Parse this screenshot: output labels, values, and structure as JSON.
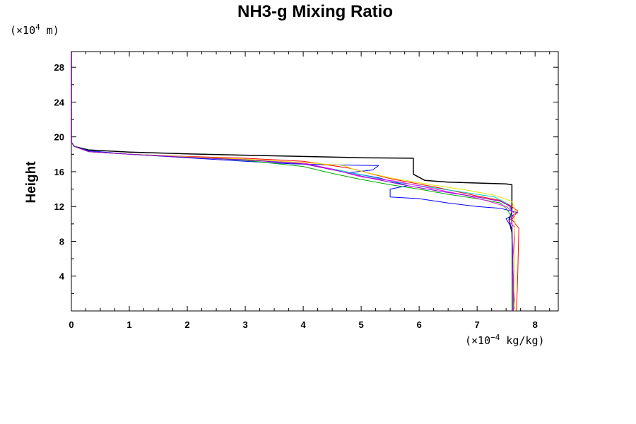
{
  "chart_data": {
    "type": "line",
    "title": "NH3-g Mixing Ratio",
    "ylabel": "Height",
    "y_unit": {
      "pre": "(×10",
      "exp": "4",
      "post": " m)"
    },
    "x_unit": {
      "pre": "(×10",
      "exp": "−4",
      "post": " kg/kg)"
    },
    "xlim": [
      0,
      8.4
    ],
    "ylim": [
      0,
      29.8
    ],
    "x_ticks": [
      "0",
      "1",
      "2",
      "3",
      "4",
      "5",
      "6",
      "7",
      "8"
    ],
    "y_ticks": [
      "4",
      "8",
      "12",
      "16",
      "20",
      "24",
      "28"
    ],
    "grid": false,
    "series": [
      {
        "color": "#000000",
        "points": [
          [
            0,
            29.8
          ],
          [
            0,
            19.4
          ],
          [
            0.05,
            18.9
          ],
          [
            0.3,
            18.5
          ],
          [
            1,
            18.25
          ],
          [
            2,
            18.05
          ],
          [
            3,
            17.9
          ],
          [
            4,
            17.75
          ],
          [
            5,
            17.6
          ],
          [
            5.9,
            17.55
          ],
          [
            5.9,
            15.7
          ],
          [
            6.1,
            15.0
          ],
          [
            6.5,
            14.8
          ],
          [
            7,
            14.7
          ],
          [
            7.5,
            14.6
          ],
          [
            7.6,
            14.5
          ],
          [
            7.6,
            11.4
          ],
          [
            7.55,
            10.5
          ],
          [
            7.6,
            9.0
          ],
          [
            7.62,
            4.0
          ],
          [
            7.62,
            0
          ]
        ]
      },
      {
        "color": "#0000ff",
        "points": [
          [
            0,
            29.8
          ],
          [
            0,
            19.4
          ],
          [
            0.05,
            18.9
          ],
          [
            0.3,
            18.4
          ],
          [
            1,
            18.0
          ],
          [
            2,
            17.6
          ],
          [
            3,
            17.2
          ],
          [
            3.8,
            16.9
          ],
          [
            4.4,
            16.8
          ],
          [
            5.3,
            16.7
          ],
          [
            5.2,
            16.2
          ],
          [
            4.8,
            15.9
          ],
          [
            5.3,
            15.3
          ],
          [
            5.8,
            14.4
          ],
          [
            5.5,
            14.0
          ],
          [
            5.5,
            13.1
          ],
          [
            6,
            12.9
          ],
          [
            6.5,
            12.4
          ],
          [
            7,
            12.0
          ],
          [
            7.4,
            11.8
          ],
          [
            7.7,
            11.3
          ],
          [
            7.5,
            10.6
          ],
          [
            7.6,
            9.5
          ],
          [
            7.62,
            4.0
          ],
          [
            7.62,
            0
          ]
        ]
      },
      {
        "color": "#ff0000",
        "points": [
          [
            0,
            29.8
          ],
          [
            0,
            19.4
          ],
          [
            0.05,
            18.9
          ],
          [
            0.3,
            18.3
          ],
          [
            1,
            18.0
          ],
          [
            2,
            17.75
          ],
          [
            3,
            17.55
          ],
          [
            4,
            17.2
          ],
          [
            4.8,
            16.4
          ],
          [
            5.5,
            15.2
          ],
          [
            6.3,
            14.2
          ],
          [
            7,
            13.2
          ],
          [
            7.4,
            12.7
          ],
          [
            7.55,
            12.2
          ],
          [
            7.7,
            11.5
          ],
          [
            7.6,
            10.5
          ],
          [
            7.72,
            9.5
          ],
          [
            7.7,
            4.0
          ],
          [
            7.68,
            0
          ]
        ]
      },
      {
        "color": "#00aa00",
        "points": [
          [
            0,
            29.8
          ],
          [
            0,
            19.4
          ],
          [
            0.05,
            18.9
          ],
          [
            0.3,
            18.3
          ],
          [
            1,
            18.0
          ],
          [
            2,
            17.7
          ],
          [
            3,
            17.3
          ],
          [
            4,
            16.6
          ],
          [
            4.5,
            15.8
          ],
          [
            5,
            15.1
          ],
          [
            5.5,
            14.5
          ],
          [
            6,
            14.0
          ],
          [
            6.5,
            13.4
          ],
          [
            7,
            12.9
          ],
          [
            7.4,
            12.4
          ],
          [
            7.5,
            11.8
          ],
          [
            7.58,
            11.0
          ],
          [
            7.6,
            10.0
          ],
          [
            7.6,
            4.0
          ],
          [
            7.6,
            0
          ]
        ]
      },
      {
        "color": "#00cccc",
        "points": [
          [
            0,
            29.8
          ],
          [
            0,
            19.4
          ],
          [
            0.05,
            18.9
          ],
          [
            0.3,
            18.3
          ],
          [
            1,
            18.0
          ],
          [
            2,
            17.7
          ],
          [
            3,
            17.4
          ],
          [
            4,
            16.9
          ],
          [
            4.6,
            16.2
          ],
          [
            5.1,
            15.5
          ],
          [
            5.6,
            14.8
          ],
          [
            6.2,
            14.2
          ],
          [
            6.8,
            13.6
          ],
          [
            7.3,
            13.1
          ],
          [
            7.5,
            12.4
          ],
          [
            7.6,
            11.6
          ],
          [
            7.6,
            10.4
          ],
          [
            7.62,
            4.0
          ],
          [
            7.62,
            0
          ]
        ]
      },
      {
        "color": "#ff00ff",
        "points": [
          [
            0,
            29.8
          ],
          [
            0,
            19.4
          ],
          [
            0.05,
            18.9
          ],
          [
            0.3,
            18.3
          ],
          [
            1,
            18.0
          ],
          [
            2,
            17.7
          ],
          [
            3,
            17.45
          ],
          [
            4,
            17.0
          ],
          [
            4.5,
            16.3
          ],
          [
            5,
            15.4
          ],
          [
            5.6,
            14.9
          ],
          [
            6.2,
            14.1
          ],
          [
            6.8,
            13.3
          ],
          [
            7.2,
            12.6
          ],
          [
            7.5,
            12.0
          ],
          [
            7.65,
            11.2
          ],
          [
            7.55,
            10.3
          ],
          [
            7.65,
            9.6
          ],
          [
            7.6,
            4.0
          ],
          [
            7.65,
            0.5
          ],
          [
            7.6,
            0
          ]
        ]
      },
      {
        "color": "#e6e600",
        "points": [
          [
            0,
            29.8
          ],
          [
            0,
            19.4
          ],
          [
            0.05,
            18.9
          ],
          [
            0.3,
            18.3
          ],
          [
            1,
            18.0
          ],
          [
            2,
            17.7
          ],
          [
            3,
            17.45
          ],
          [
            4,
            17.05
          ],
          [
            4.7,
            16.7
          ],
          [
            4.9,
            16.2
          ],
          [
            5.5,
            15.3
          ],
          [
            6.2,
            14.5
          ],
          [
            6.8,
            13.9
          ],
          [
            7.3,
            13.3
          ],
          [
            7.6,
            12.6
          ],
          [
            7.65,
            11.7
          ],
          [
            7.65,
            10.8
          ],
          [
            7.65,
            4.0
          ],
          [
            7.65,
            0
          ]
        ]
      },
      {
        "color": "#8800cc",
        "points": [
          [
            0,
            29.8
          ],
          [
            0,
            19.4
          ],
          [
            0.05,
            18.9
          ],
          [
            0.3,
            18.3
          ],
          [
            1,
            18.0
          ],
          [
            2,
            17.65
          ],
          [
            3,
            17.35
          ],
          [
            4,
            16.9
          ],
          [
            4.6,
            16.1
          ],
          [
            5.2,
            15.2
          ],
          [
            5.8,
            14.4
          ],
          [
            6.4,
            13.7
          ],
          [
            7,
            13.1
          ],
          [
            7.4,
            12.6
          ],
          [
            7.58,
            12.0
          ],
          [
            7.6,
            11.0
          ],
          [
            7.62,
            4.0
          ],
          [
            7.62,
            0
          ]
        ]
      }
    ]
  }
}
